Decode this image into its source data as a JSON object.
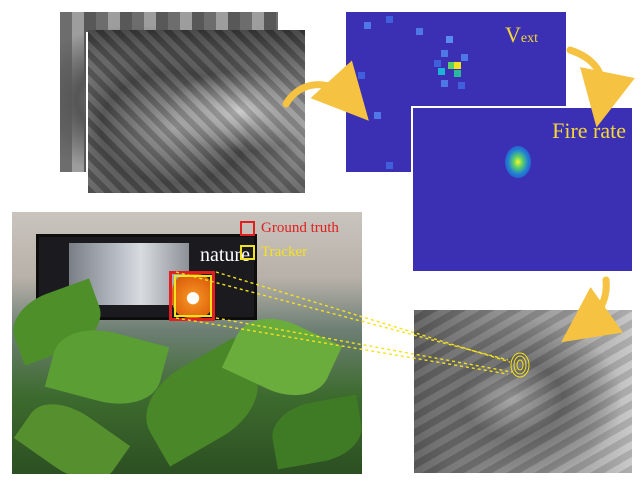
{
  "panels": {
    "vext": {
      "label_main": "V",
      "label_sub": "ext"
    },
    "fire_rate": {
      "label": "Fire rate"
    }
  },
  "scene": {
    "monitor_text": "nature"
  },
  "legend": {
    "ground_truth": "Ground truth",
    "tracker": "Tracker"
  },
  "colors": {
    "arrow": "#f5c242",
    "ground_truth": "#e02020",
    "tracker": "#f4e21f",
    "heatmap_bg": "#3b2fb3"
  }
}
